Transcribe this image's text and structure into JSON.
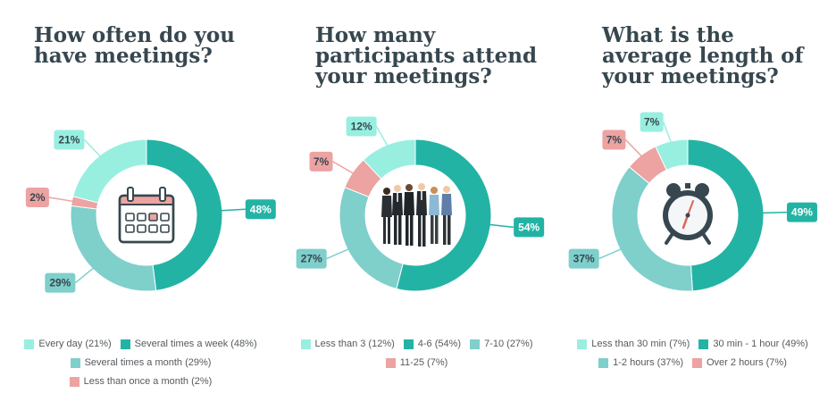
{
  "colors": {
    "light_teal": "#98efe0",
    "dark_teal": "#23b3a5",
    "mid_teal": "#7fcfcb",
    "pink": "#eca3a1",
    "title": "#37474f"
  },
  "chart_data": [
    {
      "type": "pie",
      "title": "How often do you\nhave meetings?",
      "center_icon": "calendar-icon",
      "slices": [
        {
          "label": "Every day",
          "value": 21,
          "display": "21%",
          "legend": "Every day (21%)",
          "color": "#98efe0"
        },
        {
          "label": "Several times a week",
          "value": 48,
          "display": "48%",
          "legend": "Several times a week (48%)",
          "color": "#23b3a5"
        },
        {
          "label": "Several times a month",
          "value": 29,
          "display": "29%",
          "legend": "Several times a month (29%)",
          "color": "#7fcfcb"
        },
        {
          "label": "Less than once a month",
          "value": 2,
          "display": "2%",
          "legend": "Less than once a month (2%)",
          "color": "#eca3a1"
        }
      ]
    },
    {
      "type": "pie",
      "title": "How many\nparticipants attend\nyour meetings?",
      "center_icon": "business-people-icon",
      "slices": [
        {
          "label": "Less than 3",
          "value": 12,
          "display": "12%",
          "legend": "Less than 3 (12%)",
          "color": "#98efe0"
        },
        {
          "label": "4-6",
          "value": 54,
          "display": "54%",
          "legend": "4-6 (54%)",
          "color": "#23b3a5"
        },
        {
          "label": "7-10",
          "value": 27,
          "display": "27%",
          "legend": "7-10 (27%)",
          "color": "#7fcfcb"
        },
        {
          "label": "11-25",
          "value": 7,
          "display": "7%",
          "legend": "11-25 (7%)",
          "color": "#eca3a1"
        }
      ]
    },
    {
      "type": "pie",
      "title": "What is the\naverage length of\nyour meetings?",
      "center_icon": "alarm-clock-icon",
      "slices": [
        {
          "label": "Less than 30 min",
          "value": 7,
          "display": "7%",
          "legend": "Less than 30 min (7%)",
          "color": "#98efe0"
        },
        {
          "label": "30 min - 1 hour",
          "value": 49,
          "display": "49%",
          "legend": "30 min - 1 hour (49%)",
          "color": "#23b3a5"
        },
        {
          "label": "1-2 hours",
          "value": 37,
          "display": "37%",
          "legend": "1-2 hours (37%)",
          "color": "#7fcfcb"
        },
        {
          "label": "Over 2 hours",
          "value": 7,
          "display": "7%",
          "legend": "Over 2 hours (7%)",
          "color": "#eca3a1"
        }
      ]
    }
  ]
}
